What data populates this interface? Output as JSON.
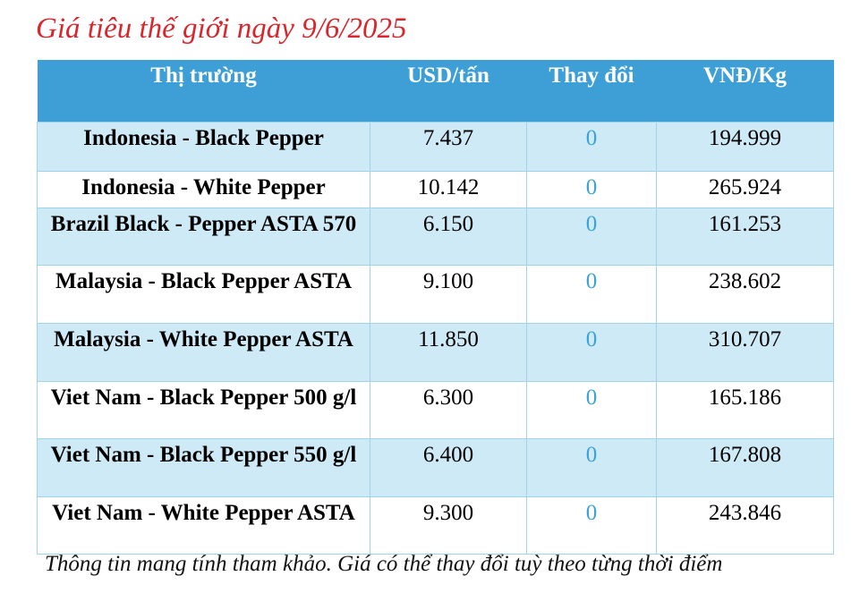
{
  "title": "Giá tiêu thế giới ngày 9/6/2025",
  "headers": [
    "Thị trường",
    "USD/tấn",
    "Thay đổi",
    "VNĐ/Kg"
  ],
  "rows": [
    {
      "market": "Indonesia - Black Pepper",
      "usd": "7.437",
      "change": "0",
      "vnd": "194.999"
    },
    {
      "market": "Indonesia - White Pepper",
      "usd": "10.142",
      "change": "0",
      "vnd": "265.924"
    },
    {
      "market": "Brazil Black - Pepper ASTA 570",
      "usd": "6.150",
      "change": "0",
      "vnd": "161.253"
    },
    {
      "market": "Malaysia - Black Pepper ASTA",
      "usd": "9.100",
      "change": "0",
      "vnd": "238.602"
    },
    {
      "market": "Malaysia - White Pepper ASTA",
      "usd": "11.850",
      "change": "0",
      "vnd": "310.707"
    },
    {
      "market": "Viet Nam - Black Pepper 500 g/l",
      "usd": "6.300",
      "change": "0",
      "vnd": "165.186"
    },
    {
      "market": "Viet Nam - Black Pepper 550 g/l",
      "usd": "6.400",
      "change": "0",
      "vnd": "167.808"
    },
    {
      "market": "Viet Nam - White Pepper ASTA",
      "usd": "9.300",
      "change": "0",
      "vnd": "243.846"
    }
  ],
  "note": "Thông tin mang tính tham khảo. Giá có thể thay đổi tuỳ theo từng thời điểm",
  "colors": {
    "title": "#d9262c",
    "header_bg": "#3d9fd6",
    "row_alt": "#cfeaf7",
    "change": "#3aa3d8"
  }
}
